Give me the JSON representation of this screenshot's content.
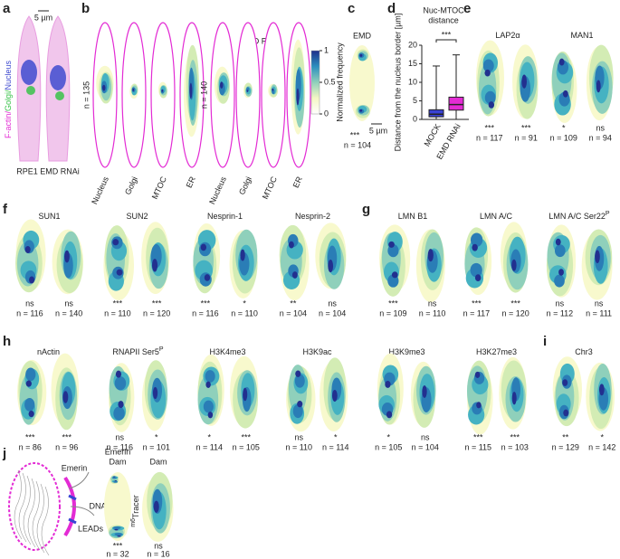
{
  "panels": {
    "a": {
      "label": "a",
      "scale_bar": "5 µm",
      "channels": [
        "F-actin/",
        "Golgi/",
        "Nucleus"
      ],
      "cells": [
        "RPE1",
        "EMD RNAi"
      ]
    },
    "b": {
      "label": "b",
      "groups": [
        {
          "n": "n = 135",
          "columns": [
            "Nucleus",
            "Golgi",
            "MTOC",
            "ER"
          ]
        },
        {
          "title": "EMD RNAi",
          "n": "n = 140",
          "columns": [
            "Nucleus",
            "Golgi",
            "MTOC",
            "ER"
          ]
        }
      ],
      "colorbar": {
        "title": "Normalized frequency",
        "ticks": [
          0,
          0.5,
          1
        ],
        "range": [
          0,
          1
        ]
      }
    },
    "c": {
      "label": "c",
      "title": "EMD",
      "scale_bar": "5 µm",
      "sig": "***",
      "n": "n = 104"
    },
    "d": {
      "label": "d",
      "type": "box",
      "title_lines": [
        "Nuc-MTOC",
        "distance"
      ],
      "ylabel": "Distance from the nucleus border [µm]",
      "categories": [
        "MOCK",
        "EMD RNAi"
      ],
      "significance": "***",
      "ylim": [
        0,
        20
      ],
      "yticks": [
        0,
        5,
        10,
        15,
        20
      ],
      "boxes": [
        {
          "min": 0,
          "q1": 0.7,
          "median": 1.4,
          "q3": 2.6,
          "max": 14.4,
          "color": "#3a43d4"
        },
        {
          "min": 0,
          "q1": 2.5,
          "median": 4,
          "q3": 6,
          "max": 17.4,
          "color": "#e32bd4"
        }
      ]
    },
    "e": {
      "label": "e",
      "targets": [
        {
          "name": "LAP2α",
          "maps": [
            {
              "sig": "***",
              "n": "n = 117"
            },
            {
              "sig": "***",
              "n": "n = 91"
            }
          ]
        },
        {
          "name": "MAN1",
          "maps": [
            {
              "sig": "*",
              "n": "n = 109"
            },
            {
              "sig": "ns",
              "n": "n = 94"
            }
          ]
        }
      ]
    },
    "f": {
      "label": "f",
      "targets": [
        {
          "name": "SUN1",
          "maps": [
            {
              "sig": "ns",
              "n": "n = 116"
            },
            {
              "sig": "ns",
              "n": "n = 140"
            }
          ]
        },
        {
          "name": "SUN2",
          "maps": [
            {
              "sig": "***",
              "n": "n = 110"
            },
            {
              "sig": "***",
              "n": "n = 120"
            }
          ]
        },
        {
          "name": "Nesprin-1",
          "maps": [
            {
              "sig": "***",
              "n": "n = 116"
            },
            {
              "sig": "*",
              "n": "n = 110"
            }
          ]
        },
        {
          "name": "Nesprin-2",
          "maps": [
            {
              "sig": "**",
              "n": "n = 104"
            },
            {
              "sig": "ns",
              "n": "n = 104"
            }
          ]
        }
      ]
    },
    "g": {
      "label": "g",
      "targets": [
        {
          "name": "LMN B1",
          "maps": [
            {
              "sig": "***",
              "n": "n = 109"
            },
            {
              "sig": "ns",
              "n": "n = 110"
            }
          ]
        },
        {
          "name": "LMN A/C",
          "maps": [
            {
              "sig": "***",
              "n": "n = 117"
            },
            {
              "sig": "***",
              "n": "n = 120"
            }
          ]
        },
        {
          "name": "LMN A/C Ser22",
          "sup": "P",
          "maps": [
            {
              "sig": "ns",
              "n": "n = 112"
            },
            {
              "sig": "ns",
              "n": "n = 111"
            }
          ]
        }
      ]
    },
    "h": {
      "label": "h",
      "targets": [
        {
          "name": "nActin",
          "maps": [
            {
              "sig": "***",
              "n": "n = 86"
            },
            {
              "sig": "***",
              "n": "n = 96"
            }
          ]
        },
        {
          "name": "RNAPII Ser5",
          "sup": "P",
          "maps": [
            {
              "sig": "ns",
              "n": "n = 116"
            },
            {
              "sig": "*",
              "n": "n = 101"
            }
          ]
        },
        {
          "name": "H3K4me3",
          "maps": [
            {
              "sig": "*",
              "n": "n = 114"
            },
            {
              "sig": "***",
              "n": "n = 105"
            }
          ]
        },
        {
          "name": "H3K9ac",
          "maps": [
            {
              "sig": "ns",
              "n": "n = 110"
            },
            {
              "sig": "*",
              "n": "n = 114"
            }
          ]
        },
        {
          "name": "H3K9me3",
          "maps": [
            {
              "sig": "*",
              "n": "n = 105"
            },
            {
              "sig": "ns",
              "n": "n = 104"
            }
          ]
        },
        {
          "name": "H3K27me3",
          "maps": [
            {
              "sig": "***",
              "n": "n = 115"
            },
            {
              "sig": "***",
              "n": "n = 103"
            }
          ]
        }
      ]
    },
    "i": {
      "label": "i",
      "targets": [
        {
          "name": "Chr3",
          "maps": [
            {
              "sig": "**",
              "n": "n = 129"
            },
            {
              "sig": "*",
              "n": "n = 142"
            }
          ]
        }
      ]
    },
    "j": {
      "label": "j",
      "schematic": [
        "Emerin",
        "DNA",
        "LEADs"
      ],
      "tracer_prefix": "m6",
      "tracer": "Tracer",
      "targets": [
        {
          "name_lines": [
            "Emerin",
            "Dam"
          ],
          "sig": "***",
          "n": "n = 32"
        },
        {
          "name_lines": [
            "Dam"
          ],
          "sig": "ns",
          "n": "n = 16"
        }
      ]
    },
    "annotation_colors": [
      "#222222",
      "#e32bd4"
    ]
  }
}
